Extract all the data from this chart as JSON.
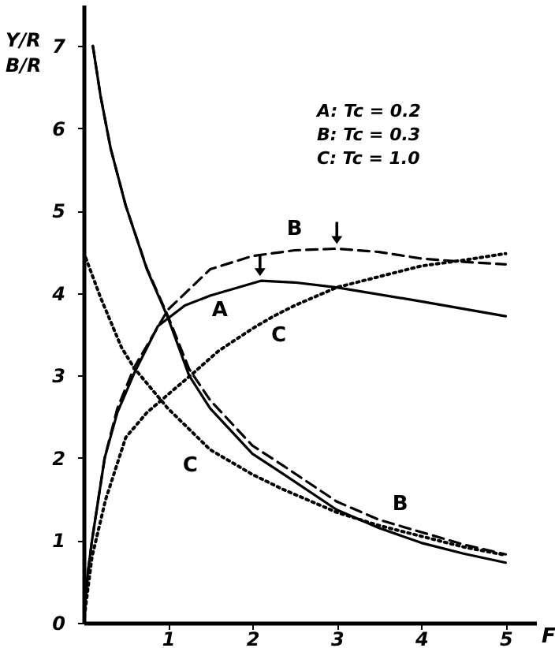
{
  "chart_data": {
    "type": "line",
    "xlabel": "F",
    "ylabel": "Y/R\nB/R",
    "xlim": [
      0,
      5.36
    ],
    "ylim": [
      0,
      7.5
    ],
    "xticks": [
      1,
      2,
      3,
      4,
      5
    ],
    "yticks": [
      0,
      1,
      2,
      3,
      4,
      5,
      6,
      7
    ],
    "grid": false,
    "marker": "none",
    "series": [
      {
        "name": "A",
        "color": "#000000",
        "line_style": "solid",
        "x": [
          0,
          0.05,
          0.1,
          0.25,
          0.4,
          0.6,
          0.88,
          1.2,
          1.5,
          2.1,
          2.5,
          3,
          4,
          5
        ],
        "values": [
          0,
          0.6,
          1.0,
          2.0,
          2.55,
          3.03,
          3.6,
          3.85,
          3.97,
          4.15,
          4.13,
          4.07,
          3.9,
          3.72
        ]
      },
      {
        "name": "B",
        "color": "#000000",
        "line_style": "dashed",
        "x": [
          0,
          0.05,
          0.1,
          0.25,
          0.4,
          0.6,
          1,
          1.5,
          2,
          2.5,
          3,
          3.5,
          4,
          4.5,
          5
        ],
        "values": [
          0,
          0.6,
          1.0,
          2.0,
          2.6,
          3.1,
          3.8,
          4.29,
          4.45,
          4.52,
          4.54,
          4.5,
          4.42,
          4.38,
          4.35
        ]
      },
      {
        "name": "C",
        "color": "#000000",
        "line_style": "dotted",
        "x": [
          0,
          0.1,
          0.26,
          0.5,
          0.75,
          1,
          1.3,
          1.6,
          2,
          2.25,
          2.5,
          3,
          3.5,
          4,
          4.5,
          5
        ],
        "values": [
          0,
          0.8,
          1.49,
          2.25,
          2.55,
          2.77,
          3.03,
          3.3,
          3.57,
          3.72,
          3.85,
          4.07,
          4.2,
          4.33,
          4.4,
          4.48
        ]
      },
      {
        "color": "#000000",
        "line_style": "solid",
        "x": [
          0.11,
          0.2,
          0.32,
          0.5,
          0.75,
          1,
          1.25,
          1.5,
          2,
          2.36,
          3,
          3.5,
          4,
          4.5,
          5
        ],
        "values": [
          7.0,
          6.4,
          5.76,
          5.06,
          4.29,
          3.7,
          3.0,
          2.6,
          2.05,
          1.81,
          1.37,
          1.15,
          0.97,
          0.84,
          0.73
        ]
      },
      {
        "name": "B",
        "color": "#000000",
        "line_style": "dashed",
        "x": [
          0.11,
          0.2,
          0.32,
          0.5,
          0.75,
          1,
          1.25,
          1.5,
          2,
          2.36,
          3,
          3.5,
          4,
          4.5,
          5
        ],
        "values": [
          7.0,
          6.4,
          5.76,
          5.06,
          4.3,
          3.72,
          3.08,
          2.7,
          2.15,
          1.91,
          1.47,
          1.25,
          1.1,
          0.95,
          0.83
        ]
      },
      {
        "name": "C",
        "color": "#000000",
        "line_style": "dotted",
        "x": [
          0,
          0.2,
          0.45,
          0.6,
          1,
          1.5,
          2,
          2.36,
          3,
          3.5,
          4,
          4.5,
          5
        ],
        "values": [
          4.5,
          3.95,
          3.34,
          3.09,
          2.6,
          2.1,
          1.8,
          1.62,
          1.34,
          1.18,
          1.05,
          0.92,
          0.82
        ]
      }
    ],
    "annotations": [
      "A: Tc = 0.2",
      "B: Tc = 0.3",
      "C: Tc = 1.0"
    ]
  }
}
